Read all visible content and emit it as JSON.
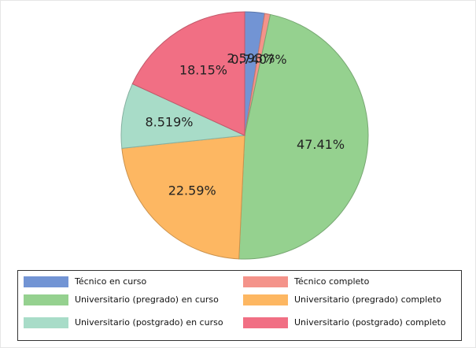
{
  "chart_data": {
    "type": "pie",
    "categories": [
      "Técnico en curso",
      "Técnico completo",
      "Universitario (pregrado) en curso",
      "Universitario (pregrado) completo",
      "Universitario (postgrado) en curso",
      "Universitario (postgrado) completo"
    ],
    "values": [
      2.593,
      0.7407,
      47.41,
      22.59,
      8.519,
      18.15
    ],
    "value_labels": [
      "2.593%",
      "0.7407%",
      "47.41%",
      "22.59%",
      "8.519%",
      "18.15%"
    ],
    "colors": [
      "#7294d4",
      "#f4938a",
      "#95d18f",
      "#fdb762",
      "#a8dcc8",
      "#f16f84"
    ]
  }
}
